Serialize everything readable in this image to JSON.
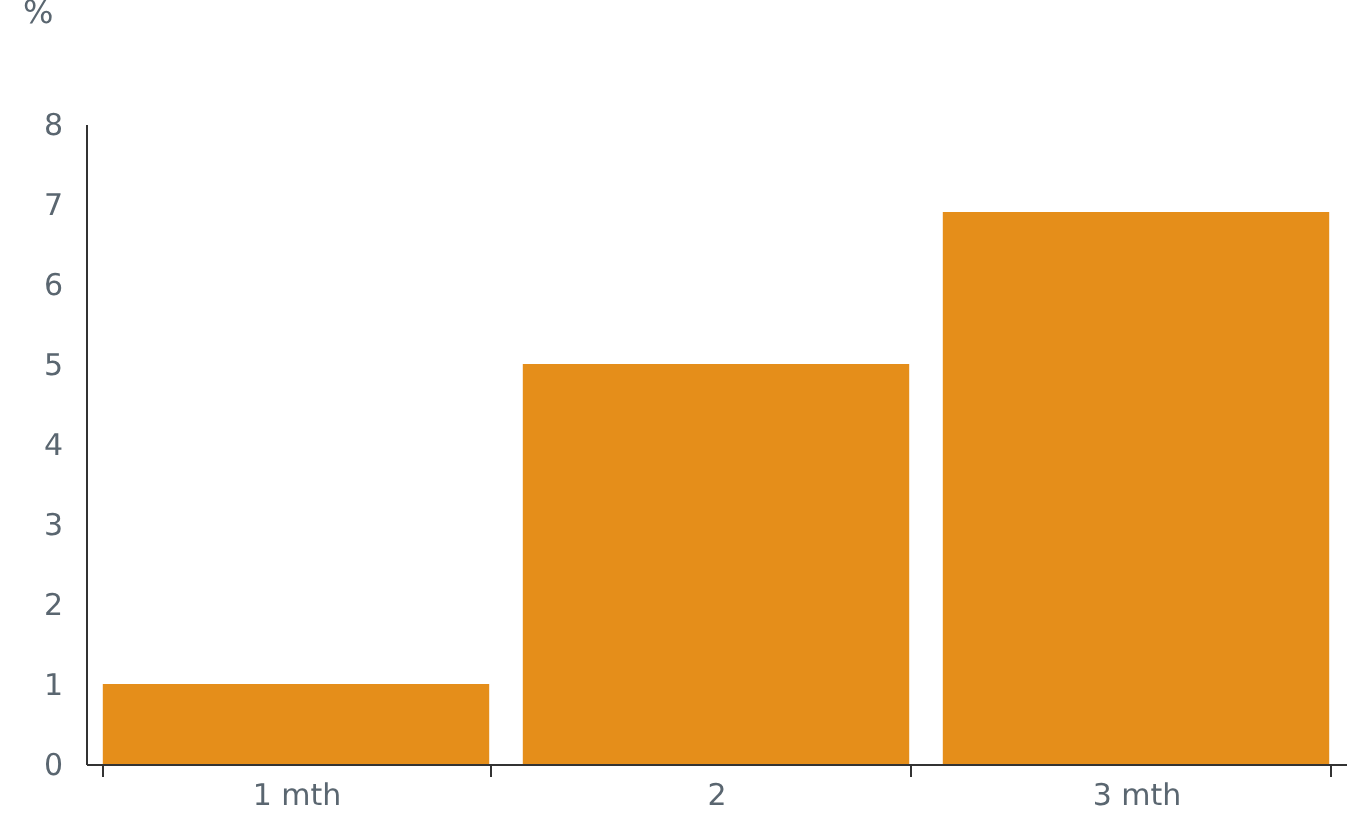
{
  "chart_data": {
    "type": "bar",
    "ylabel": "%",
    "categories": [
      "1 mth",
      "2",
      "3 mth"
    ],
    "values": [
      1.0,
      5.0,
      6.9
    ],
    "color": "#e58e1a",
    "ylim": [
      0,
      8
    ],
    "yticks": [
      0,
      1,
      2,
      3,
      4,
      5,
      6,
      7,
      8
    ],
    "grid": false
  }
}
